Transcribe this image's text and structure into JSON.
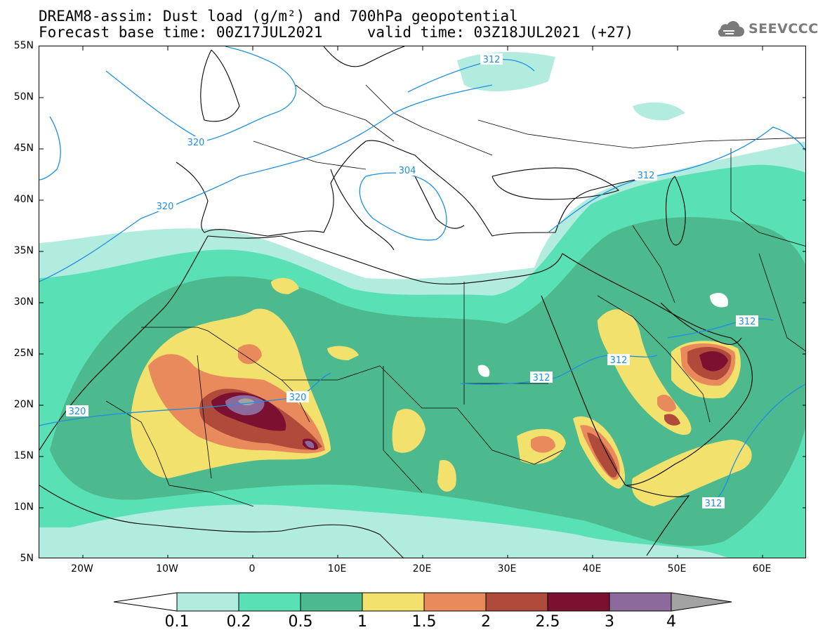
{
  "title": {
    "line1": "DREAM8-assim: Dust load (g/m²) and 700hPa geopotential",
    "line2": "Forecast base time: 00Z17JUL2021     valid time: 03Z18JUL2021 (+27)"
  },
  "logo": {
    "text": "SEEVCCC",
    "icon": "cloud-icon"
  },
  "axes": {
    "lat_labels": [
      "55N",
      "50N",
      "45N",
      "40N",
      "35N",
      "30N",
      "25N",
      "20N",
      "15N",
      "10N",
      "5N"
    ],
    "lon_labels": [
      "20W",
      "10W",
      "0",
      "10E",
      "20E",
      "30E",
      "40E",
      "50E",
      "60E"
    ],
    "lat_range": [
      5,
      55
    ],
    "lon_range": [
      -25,
      65
    ]
  },
  "contours": {
    "labels": [
      "312",
      "320",
      "320",
      "320",
      "304",
      "312",
      "312",
      "312",
      "312",
      "312",
      "320"
    ]
  },
  "colorbar": {
    "levels": [
      "0.1",
      "0.2",
      "0.5",
      "1",
      "1.5",
      "2",
      "2.5",
      "3",
      "4"
    ],
    "colors": [
      "#b2ecdf",
      "#59e0b5",
      "#4cb98e",
      "#f2e16d",
      "#e88a5b",
      "#b04a3b",
      "#7c1030",
      "#8c6b9c",
      "#a3a3a3"
    ]
  }
}
